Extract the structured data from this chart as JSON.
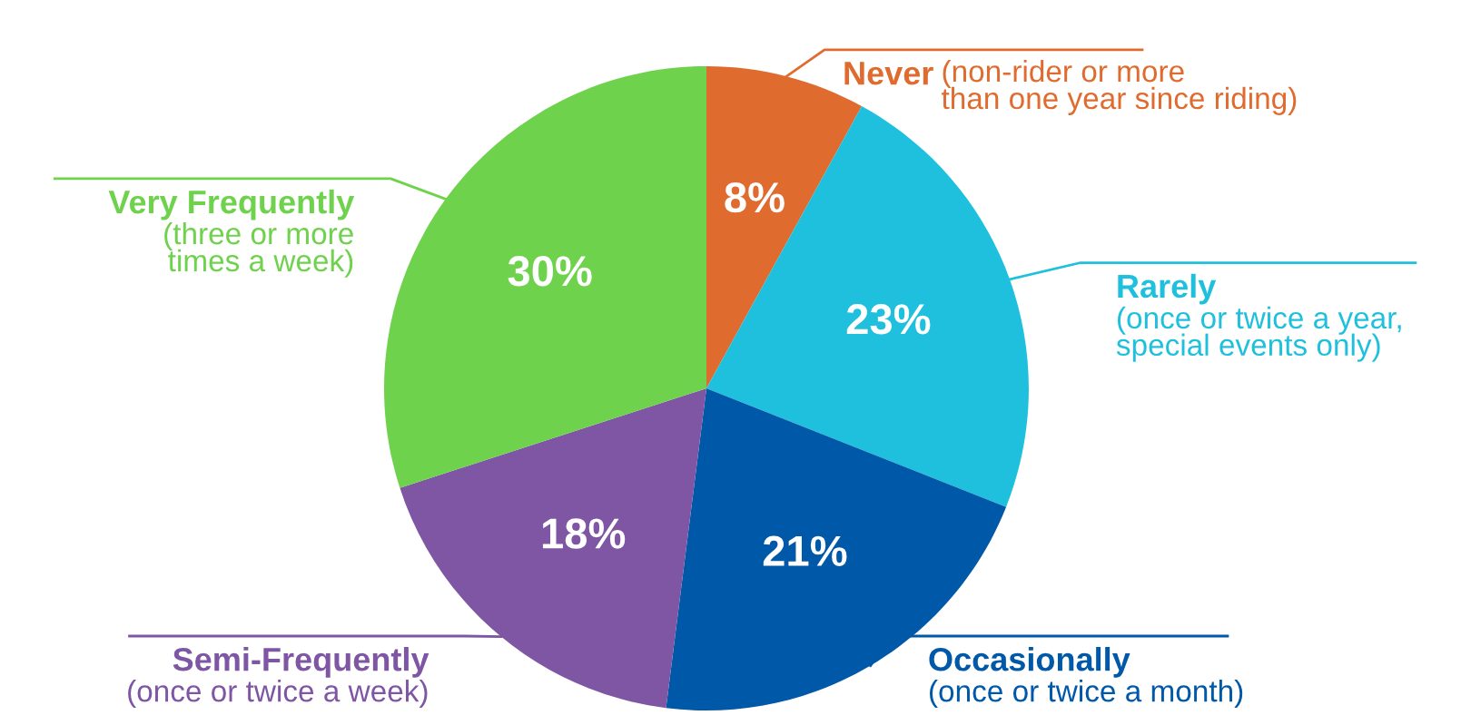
{
  "chart_data": {
    "type": "pie",
    "categories": [
      "Never",
      "Rarely",
      "Occasionally",
      "Semi-Frequently",
      "Very Frequently"
    ],
    "values": [
      8,
      23,
      21,
      18,
      30
    ],
    "value_labels": [
      "8%",
      "23%",
      "21%",
      "18%",
      "30%"
    ],
    "colors": [
      "#e06b2e",
      "#1fc0dd",
      "#0058a8",
      "#7f56a3",
      "#6fd24c"
    ],
    "annotations": [
      "(non-rider or more\nthan one year since riding)",
      "(once or twice a year,\nspecial events only)",
      "(once or twice a month)",
      "(once or twice a week)",
      "(three or more\ntimes a week)"
    ]
  }
}
